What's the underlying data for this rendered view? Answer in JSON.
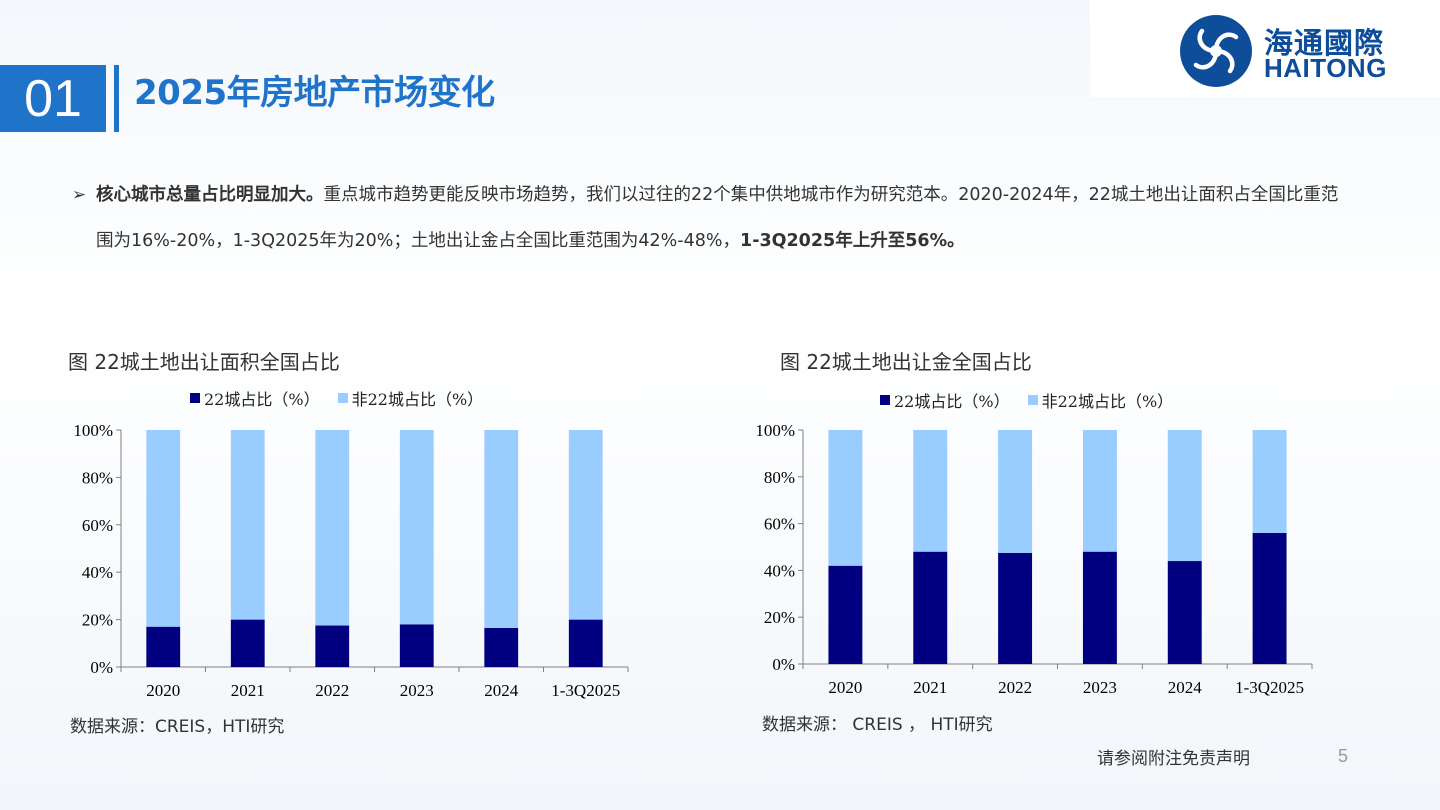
{
  "header": {
    "section_number": "01",
    "title": "2025年房地产市场变化",
    "logo_cn": "海通國際",
    "logo_en": "HAITONG"
  },
  "bullet": {
    "bold_lead": "核心城市总量占比明显加大。",
    "text_1": "重点城市趋势更能反映市场趋势，我们以过往的22个集中供地城市作为研究范本。2020-2024年，22城土地出让面积占全国比重范围为16%-20%，1-3Q2025年为20%；土地出让金占全国比重范围为42%-48%，",
    "bold_tail": "1-3Q2025年上升至56%。"
  },
  "colors": {
    "accent": "#1f74c9",
    "series_22": "#000080",
    "series_non22": "#99ccff"
  },
  "chart_data": [
    {
      "type": "bar",
      "stacked": true,
      "title": "图 22城土地出让面积全国占比",
      "categories": [
        "2020",
        "2021",
        "2022",
        "2023",
        "2024",
        "1-3Q2025"
      ],
      "series": [
        {
          "name": "22城占比（%）",
          "values": [
            17,
            20,
            17.5,
            18,
            16.5,
            20
          ]
        },
        {
          "name": "非22城占比（%）",
          "values": [
            83,
            80,
            82.5,
            82,
            83.5,
            80
          ]
        }
      ],
      "yticks": [
        "0%",
        "20%",
        "40%",
        "60%",
        "80%",
        "100%"
      ],
      "ylim": [
        0,
        100
      ],
      "legend_position": "top",
      "source": "数据来源：CREIS，HTI研究"
    },
    {
      "type": "bar",
      "stacked": true,
      "title": "图 22城土地出让金全国占比",
      "categories": [
        "2020",
        "2021",
        "2022",
        "2023",
        "2024",
        "1-3Q2025"
      ],
      "series": [
        {
          "name": "22城占比（%）",
          "values": [
            42,
            48,
            47.5,
            48,
            44,
            56
          ]
        },
        {
          "name": "非22城占比（%）",
          "values": [
            58,
            52,
            52.5,
            52,
            56,
            44
          ]
        }
      ],
      "yticks": [
        "0%",
        "20%",
        "40%",
        "60%",
        "80%",
        "100%"
      ],
      "ylim": [
        0,
        100
      ],
      "legend_position": "top",
      "source": "数据来源： CREIS ， HTI研究"
    }
  ],
  "footer": {
    "disclaimer": "请参阅附注免责声明",
    "page_number": "5"
  }
}
